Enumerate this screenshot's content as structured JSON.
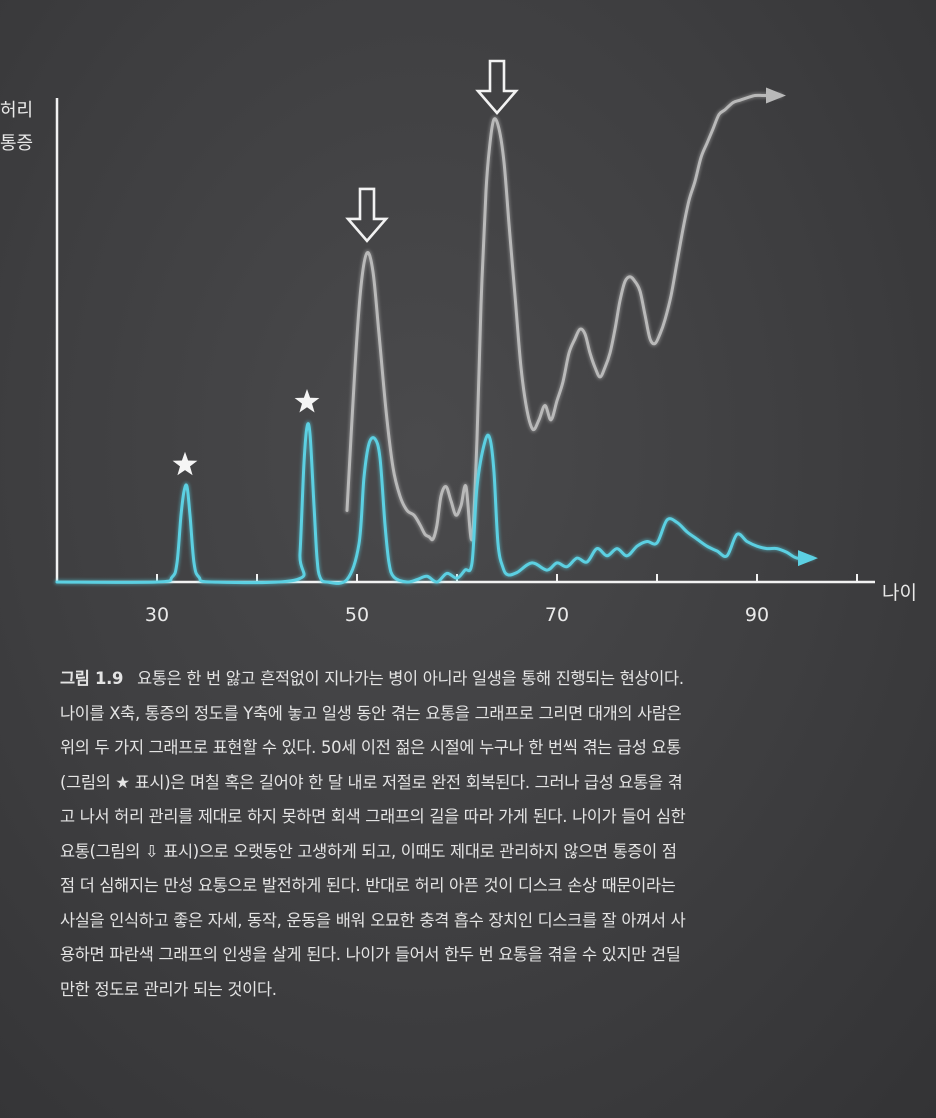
{
  "chart_data": {
    "type": "line",
    "ylabel_lines": [
      "허리",
      "통증"
    ],
    "xlabel": "나이",
    "xticks": [
      30,
      50,
      70,
      90
    ],
    "xlim": [
      20,
      100
    ],
    "ylim": [
      0,
      1
    ],
    "series": [
      {
        "color": "#b9b9b9",
        "x": [
          49,
          49.8,
          50.4,
          51,
          51.6,
          52.2,
          52.9,
          53.6,
          54.3,
          55,
          55.7,
          56.3,
          56.8,
          57.2,
          57.6,
          58,
          58.4,
          58.9,
          59.4,
          59.9,
          60.4,
          60.9,
          61.5,
          62,
          62.4,
          62.9,
          63.3,
          63.7,
          64.2,
          64.7,
          65.2,
          65.8,
          66.4,
          67,
          67.6,
          68.2,
          68.8,
          69.4,
          70,
          70.6,
          71.2,
          71.8,
          72.3,
          72.8,
          73.3,
          73.8,
          74.3,
          74.8,
          75.3,
          75.8,
          76.3,
          76.8,
          77.3,
          77.8,
          78.3,
          78.8,
          79.3,
          79.8,
          80.3,
          80.8,
          81.4,
          82,
          82.6,
          83.2,
          83.8,
          84.4,
          85,
          85.6,
          86.2,
          86.8,
          87.6,
          88.3,
          89,
          89.8,
          90.6,
          91.4,
          92.3
        ],
        "y": [
          0.15,
          0.45,
          0.62,
          0.69,
          0.65,
          0.52,
          0.36,
          0.24,
          0.18,
          0.15,
          0.14,
          0.12,
          0.1,
          0.095,
          0.09,
          0.12,
          0.18,
          0.2,
          0.17,
          0.14,
          0.16,
          0.2,
          0.09,
          0.3,
          0.58,
          0.82,
          0.92,
          0.97,
          0.95,
          0.88,
          0.75,
          0.6,
          0.45,
          0.36,
          0.32,
          0.34,
          0.37,
          0.34,
          0.38,
          0.42,
          0.48,
          0.51,
          0.53,
          0.52,
          0.48,
          0.45,
          0.43,
          0.45,
          0.48,
          0.53,
          0.59,
          0.63,
          0.64,
          0.63,
          0.61,
          0.56,
          0.51,
          0.5,
          0.52,
          0.55,
          0.6,
          0.67,
          0.74,
          0.8,
          0.84,
          0.89,
          0.92,
          0.95,
          0.98,
          0.99,
          1.005,
          1.01,
          1.015,
          1.02,
          1.02,
          1.02,
          1.02
        ]
      },
      {
        "color": "#5cd0e2",
        "x": [
          20,
          30,
          31.5,
          32,
          32.4,
          32.7,
          33,
          33.3,
          33.7,
          34.2,
          35.5,
          44,
          44.3,
          44.7,
          45,
          45.3,
          45.7,
          46,
          46.3,
          47,
          49,
          50.2,
          50.7,
          51.2,
          51.8,
          52.3,
          52.8,
          53.2,
          53.7,
          55,
          56,
          57,
          58,
          59,
          60,
          60.8,
          61.5,
          62,
          62.8,
          63.3,
          63.7,
          64.1,
          64.6,
          65.1,
          66,
          67.5,
          69,
          70,
          71,
          72,
          73,
          74,
          75,
          76,
          77,
          78,
          79,
          80,
          81,
          82,
          83,
          84,
          85,
          86,
          87,
          88,
          89,
          90,
          91,
          92,
          93,
          94,
          95.5
        ],
        "y": [
          0.0,
          0.0,
          0.01,
          0.04,
          0.14,
          0.19,
          0.2,
          0.14,
          0.04,
          0.01,
          0.0,
          0.005,
          0.06,
          0.25,
          0.325,
          0.31,
          0.16,
          0.05,
          0.01,
          0.0,
          0.005,
          0.08,
          0.22,
          0.29,
          0.3,
          0.26,
          0.12,
          0.04,
          0.01,
          0.0,
          0.005,
          0.012,
          0.0,
          0.018,
          0.008,
          0.025,
          0.04,
          0.2,
          0.295,
          0.3,
          0.23,
          0.08,
          0.03,
          0.015,
          0.02,
          0.04,
          0.025,
          0.04,
          0.032,
          0.05,
          0.042,
          0.07,
          0.055,
          0.07,
          0.055,
          0.075,
          0.085,
          0.082,
          0.13,
          0.125,
          0.105,
          0.09,
          0.075,
          0.065,
          0.055,
          0.1,
          0.085,
          0.075,
          0.07,
          0.07,
          0.062,
          0.05,
          0.05
        ]
      }
    ],
    "star_markers_x": [
      32.8,
      45
    ],
    "arrow_markers_x": [
      51,
      64
    ]
  },
  "caption": {
    "figure_label": "그림 1.9",
    "first_line": "요통은 한 번 앓고 흔적없이 지나가는 병이 아니라 일생을 통해 진행되는 현상이다.",
    "lines": [
      "나이를 X축, 통증의 정도를 Y축에 놓고 일생 동안 겪는 요통을 그래프로 그리면 대개의 사람은",
      "위의 두 가지 그래프로 표현할 수 있다. 50세 이전 젊은 시절에 누구나 한 번씩 겪는 급성 요통",
      "(그림의 ★ 표시)은 며칠 혹은 길어야 한 달 내로 저절로 완전 회복된다. 그러나 급성 요통을 겪",
      "고 나서 허리 관리를 제대로 하지 못하면 회색 그래프의 길을 따라 가게 된다. 나이가 들어 심한",
      "요통(그림의 ⇩ 표시)으로 오랫동안 고생하게 되고, 이때도 제대로 관리하지 않으면 통증이 점",
      "점 더 심해지는 만성 요통으로 발전하게 된다. 반대로 허리 아픈 것이 디스크 손상 때문이라는",
      "사실을 인식하고 좋은 자세, 동작, 운동을 배워 오묘한 충격 흡수 장치인 디스크를 잘 아껴서 사",
      "용하면 파란색 그래프의 인생을 살게 된다. 나이가 들어서 한두 번 요통을 겪을 수 있지만 견딜",
      "만한 정도로 관리가 되는 것이다."
    ]
  }
}
